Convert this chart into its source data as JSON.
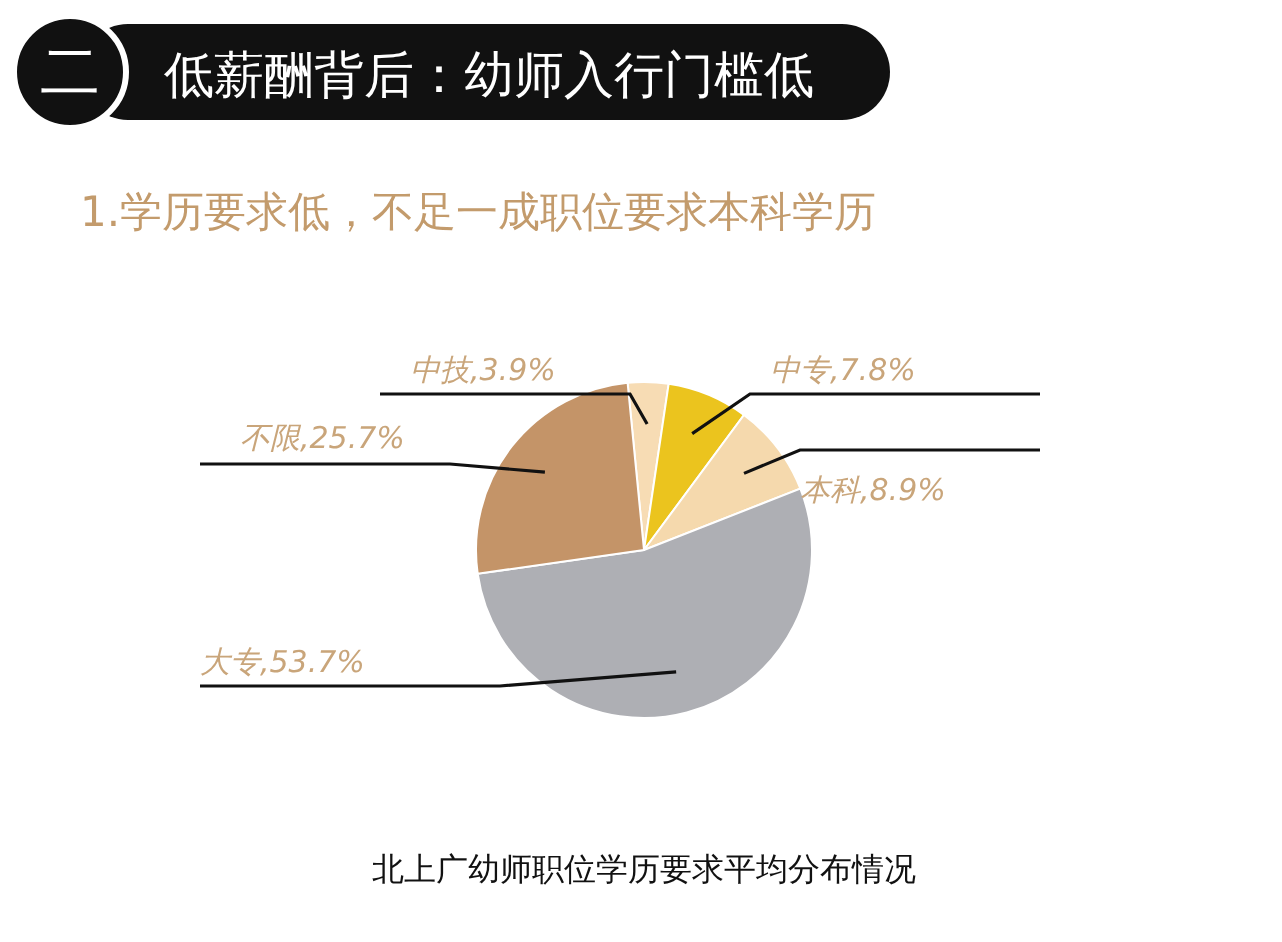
{
  "chart_data": {
    "type": "pie",
    "title": "低薪酬背后：幼师入行门槛低",
    "subtitle": "1.学历要求低，不足一成职位要求本科学历",
    "annotations": [
      "二",
      "北上广幼师职位学历要求平均分布情况"
    ],
    "categories": [
      "中技",
      "中专",
      "本科",
      "大专",
      "不限"
    ],
    "values": [
      3.9,
      7.8,
      8.9,
      53.7,
      25.7
    ],
    "value_labels": [
      ",3.9%",
      ",7.8%",
      ",8.9%",
      ",53.7%",
      ",25.7%"
    ],
    "colors": [
      "#f7dcb4",
      "#ebc41e",
      "#f5d9ad",
      "#aeafb4",
      "#c49468"
    ]
  }
}
